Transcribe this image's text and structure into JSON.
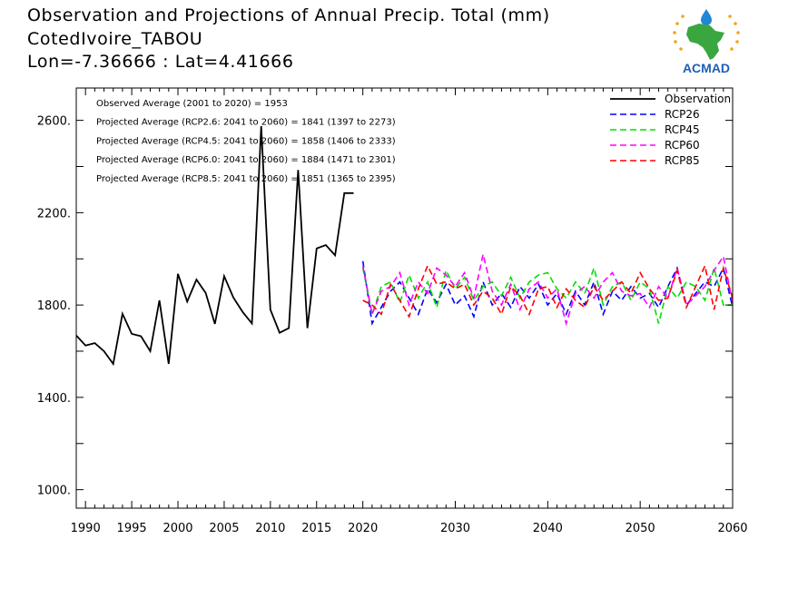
{
  "header": {
    "title": "Observation and Projections of Annual Precip. Total (mm)",
    "station": "CotedIvoire_TABOU",
    "coords": "Lon=-7.36666 : Lat=4.41666"
  },
  "logo": {
    "text": "ACMAD",
    "colors": {
      "africa": "#3aa640",
      "drop": "#1e88d6",
      "stars": "#f2a516",
      "text": "#1f5fb5"
    }
  },
  "colors": {
    "Observation": "#000000",
    "RCP26": "#0000ff",
    "RCP45": "#00e000",
    "RCP60": "#ff00ff",
    "RCP85": "#ff0000"
  },
  "chart_data": {
    "type": "line",
    "title": "Observation and Projections of Annual Precip. Total (mm)",
    "xlabel": "",
    "ylabel": "",
    "xlim": [
      1989,
      2060
    ],
    "ylim": [
      920,
      2740
    ],
    "xticks": [
      1990,
      1995,
      2000,
      2005,
      2010,
      2015,
      2020,
      2030,
      2040,
      2050,
      2060
    ],
    "xtick_labels": [
      "1990",
      "1995",
      "2000",
      "2005",
      "2010",
      "2015",
      "2020",
      "2030",
      "2040",
      "2050",
      "2060"
    ],
    "yticks": [
      1000,
      1400,
      1800,
      2200,
      2600
    ],
    "ytick_labels": [
      "1000.",
      "1400.",
      "1800.",
      "2200.",
      "2600."
    ],
    "annotations": [
      "Observed Average (2001 to 2020) = 1953",
      "Projected Average (RCP2.6: 2041 to 2060) = 1841 (1397 to 2273)",
      "Projected Average (RCP4.5: 2041 to 2060) = 1858 (1406 to 2333)",
      "Projected Average (RCP6.0: 2041 to 2060) = 1884 (1471 to 2301)",
      "Projected Average (RCP8.5: 2041 to 2060) = 1851 (1365 to 2395)"
    ],
    "legend_position": "top-right",
    "series": [
      {
        "name": "Observation",
        "style": "solid",
        "x": [
          1989,
          1990,
          1991,
          1992,
          1993,
          1994,
          1995,
          1996,
          1997,
          1998,
          1999,
          2000,
          2001,
          2002,
          2003,
          2004,
          2005,
          2006,
          2007,
          2008,
          2009,
          2010,
          2011,
          2012,
          2013,
          2014,
          2015,
          2016,
          2017,
          2018,
          2019
        ],
        "y": [
          1668,
          1625,
          1635,
          1600,
          1545,
          1762,
          1675,
          1665,
          1600,
          1820,
          1545,
          1935,
          1815,
          1910,
          1852,
          1718,
          1925,
          1832,
          1770,
          1720,
          2575,
          1780,
          1680,
          1700,
          2385,
          1700,
          2045,
          2060,
          2015,
          2285,
          2285
        ]
      },
      {
        "name": "RCP26",
        "style": "dashed",
        "x": [
          2020,
          2021,
          2022,
          2023,
          2024,
          2025,
          2026,
          2027,
          2028,
          2029,
          2030,
          2031,
          2032,
          2033,
          2034,
          2035,
          2036,
          2037,
          2038,
          2039,
          2040,
          2041,
          2042,
          2043,
          2044,
          2045,
          2046,
          2047,
          2048,
          2049,
          2050,
          2051,
          2052,
          2053,
          2054,
          2055,
          2056,
          2057,
          2058,
          2059,
          2060
        ],
        "y": [
          1990,
          1720,
          1790,
          1860,
          1900,
          1830,
          1760,
          1870,
          1810,
          1890,
          1800,
          1840,
          1750,
          1900,
          1800,
          1850,
          1790,
          1880,
          1830,
          1890,
          1800,
          1850,
          1760,
          1860,
          1800,
          1900,
          1760,
          1860,
          1820,
          1880,
          1830,
          1850,
          1790,
          1880,
          1960,
          1800,
          1850,
          1900,
          1880,
          1960,
          1790
        ]
      },
      {
        "name": "RCP45",
        "style": "dashed",
        "x": [
          2020,
          2021,
          2022,
          2023,
          2024,
          2025,
          2026,
          2027,
          2028,
          2029,
          2030,
          2031,
          2032,
          2033,
          2034,
          2035,
          2036,
          2037,
          2038,
          2039,
          2040,
          2041,
          2042,
          2043,
          2044,
          2045,
          2046,
          2047,
          2048,
          2049,
          2050,
          2051,
          2052,
          2053,
          2054,
          2055,
          2056,
          2057,
          2058,
          2059,
          2060
        ],
        "y": [
          1960,
          1760,
          1880,
          1900,
          1810,
          1930,
          1830,
          1900,
          1790,
          1950,
          1870,
          1920,
          1820,
          1880,
          1900,
          1840,
          1920,
          1830,
          1900,
          1930,
          1940,
          1870,
          1830,
          1900,
          1850,
          1960,
          1800,
          1880,
          1900,
          1820,
          1900,
          1870,
          1720,
          1880,
          1830,
          1900,
          1880,
          1820,
          1960,
          1800,
          1800
        ]
      },
      {
        "name": "RCP60",
        "style": "dashed",
        "x": [
          2020,
          2021,
          2022,
          2023,
          2024,
          2025,
          2026,
          2027,
          2028,
          2029,
          2030,
          2031,
          2032,
          2033,
          2034,
          2035,
          2036,
          2037,
          2038,
          2039,
          2040,
          2041,
          2042,
          2043,
          2044,
          2045,
          2046,
          2047,
          2048,
          2049,
          2050,
          2051,
          2052,
          2053,
          2054,
          2055,
          2056,
          2057,
          2058,
          2059,
          2060
        ],
        "y": [
          1970,
          1760,
          1860,
          1880,
          1940,
          1800,
          1900,
          1850,
          1960,
          1930,
          1880,
          1940,
          1830,
          2020,
          1860,
          1800,
          1890,
          1780,
          1870,
          1900,
          1830,
          1870,
          1720,
          1850,
          1880,
          1830,
          1900,
          1940,
          1860,
          1840,
          1850,
          1790,
          1880,
          1830,
          1960,
          1800,
          1840,
          1880,
          1950,
          2010,
          1810
        ]
      },
      {
        "name": "RCP85",
        "style": "dashed",
        "x": [
          2020,
          2021,
          2022,
          2023,
          2024,
          2025,
          2026,
          2027,
          2028,
          2029,
          2030,
          2031,
          2032,
          2033,
          2034,
          2035,
          2036,
          2037,
          2038,
          2039,
          2040,
          2041,
          2042,
          2043,
          2044,
          2045,
          2046,
          2047,
          2048,
          2049,
          2050,
          2051,
          2052,
          2053,
          2054,
          2055,
          2056,
          2057,
          2058,
          2059,
          2060
        ],
        "y": [
          1820,
          1800,
          1760,
          1890,
          1820,
          1750,
          1870,
          1970,
          1890,
          1900,
          1870,
          1890,
          1800,
          1860,
          1830,
          1760,
          1880,
          1840,
          1760,
          1870,
          1880,
          1790,
          1870,
          1820,
          1790,
          1880,
          1820,
          1860,
          1900,
          1850,
          1940,
          1870,
          1820,
          1830,
          1950,
          1790,
          1880,
          1970,
          1780,
          1960,
          1830
        ]
      }
    ]
  }
}
